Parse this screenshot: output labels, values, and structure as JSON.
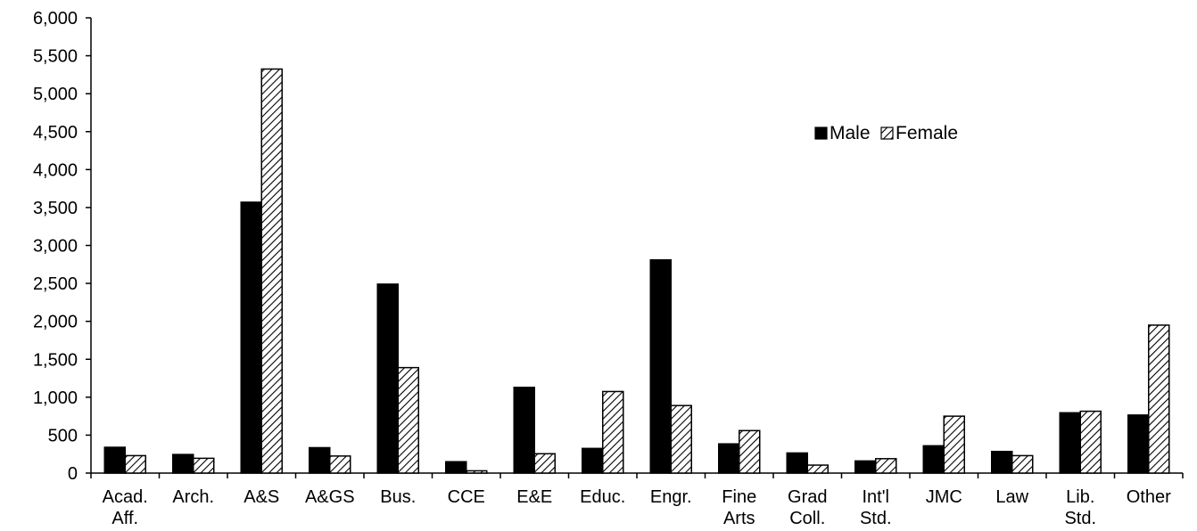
{
  "chart_data": {
    "type": "bar",
    "categories": [
      [
        "Acad.",
        "Aff."
      ],
      [
        "Arch."
      ],
      [
        "A&S"
      ],
      [
        "A&GS"
      ],
      [
        "Bus."
      ],
      [
        "CCE"
      ],
      [
        "E&E"
      ],
      [
        "Educ."
      ],
      [
        "Engr."
      ],
      [
        "Fine",
        "Arts"
      ],
      [
        "Grad",
        "Coll."
      ],
      [
        "Int'l",
        "Std."
      ],
      [
        "JMC"
      ],
      [
        "Law"
      ],
      [
        "Lib.",
        "Std."
      ],
      [
        "Other"
      ]
    ],
    "series": [
      {
        "name": "Male",
        "fill": "solid",
        "color": "#000000",
        "values": [
          340,
          245,
          3570,
          335,
          2490,
          150,
          1130,
          325,
          2810,
          385,
          265,
          160,
          360,
          285,
          795,
          765
        ]
      },
      {
        "name": "Female",
        "fill": "hatched",
        "color": "#000000",
        "values": [
          230,
          195,
          5325,
          225,
          1390,
          30,
          255,
          1075,
          890,
          560,
          105,
          190,
          750,
          230,
          815,
          1950
        ]
      }
    ],
    "yticks": [
      "0",
      "500",
      "1,000",
      "1,500",
      "2,000",
      "2,500",
      "3,000",
      "3,500",
      "4,000",
      "4,500",
      "5,000",
      "5,500",
      "6,000"
    ],
    "ylim": [
      0,
      6000
    ],
    "title": "",
    "xlabel": "",
    "ylabel": "",
    "legend_position": "upper-right-interior",
    "grid": false
  }
}
